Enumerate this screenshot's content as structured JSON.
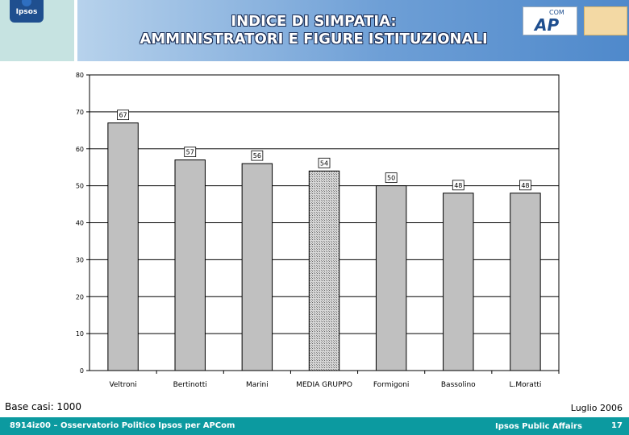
{
  "header": {
    "title_line1": "INDICE DI SIMPATIA:",
    "title_line2": "AMMINISTRATORI E FIGURE ISTITUZIONALI",
    "logo_left": "Ipsos",
    "logo_ap": "AP",
    "logo_ap_sup": "COM"
  },
  "chart_data": {
    "type": "bar",
    "categories": [
      "Veltroni",
      "Bertinotti",
      "Marini",
      "MEDIA GRUPPO",
      "Formigoni",
      "Bassolino",
      "L.Moratti"
    ],
    "values": [
      67,
      57,
      56,
      54,
      50,
      48,
      48
    ],
    "highlight_category": "MEDIA GRUPPO",
    "ylim": [
      0,
      80
    ],
    "yticks": [
      0,
      10,
      20,
      30,
      40,
      50,
      60,
      70,
      80
    ],
    "title": "",
    "xlabel": "",
    "ylabel": "",
    "grid": true,
    "colors": {
      "bar": "#c0c0c0",
      "highlight": "#a9a9a9",
      "grid": "#000000"
    }
  },
  "notes": {
    "base": "Base casi: 1000",
    "date": "Luglio 2006"
  },
  "footer": {
    "left": "8914iz00 – Osservatorio Politico Ipsos per APCom",
    "right": "Ipsos Public Affairs",
    "page": "17"
  }
}
